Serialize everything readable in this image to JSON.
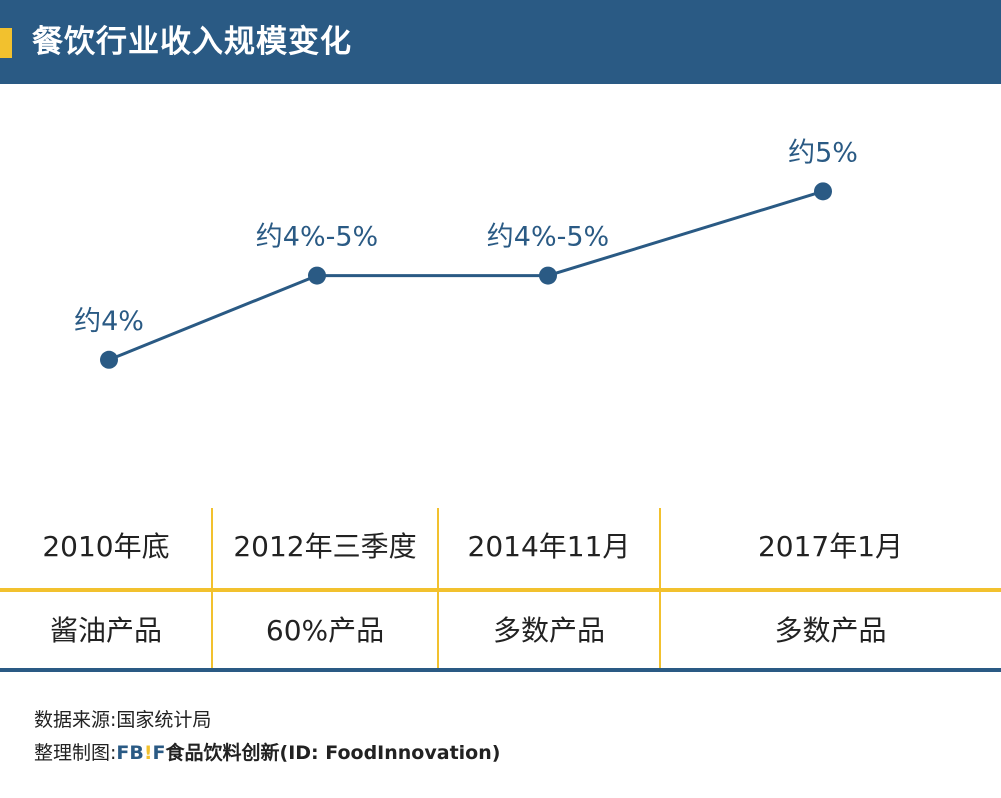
{
  "header": {
    "title": "餐饮行业收入规模变化"
  },
  "chart_data": {
    "type": "line",
    "x": [
      "2010年底",
      "2012年三季度",
      "2014年11月",
      "2017年1月"
    ],
    "series": [
      {
        "values": [
          4,
          4.5,
          4.5,
          5
        ],
        "labels": [
          "约4%",
          "约4%-5%",
          "约4%-5%",
          "约5%"
        ]
      }
    ],
    "ylim": [
      3.5,
      5.4
    ],
    "grid": false,
    "line_color": "#2a5a84",
    "label_color": "#2a5a84"
  },
  "table": {
    "row1": [
      "2010年底",
      "2012年三季度",
      "2014年11月",
      "2017年1月"
    ],
    "row2": [
      "酱油产品",
      "60%产品",
      "多数产品",
      "多数产品"
    ]
  },
  "footer": {
    "source": "数据来源:国家统计局",
    "credit_prefix": "整理制图:",
    "brand_a": "FB",
    "brand_b": "F",
    "credit_suffix": "食品饮料创新(ID: FoodInnovation)"
  },
  "colors": {
    "brand_blue": "#2a5a84",
    "accent_yellow": "#f2c12e"
  }
}
